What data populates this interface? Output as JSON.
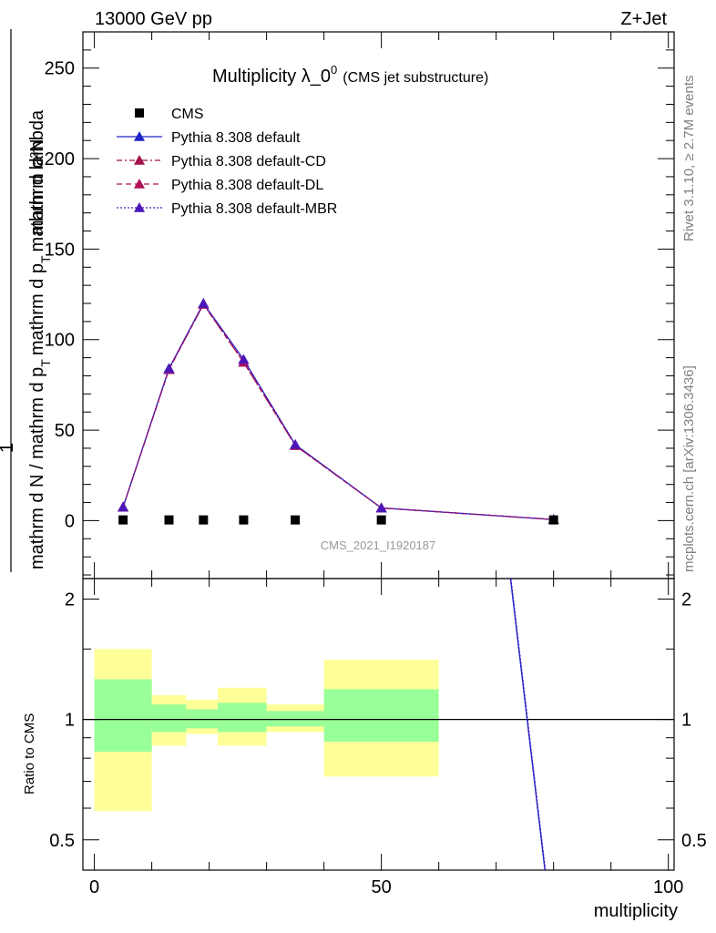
{
  "header": {
    "left": "13000 GeV pp",
    "right": "Z+Jet"
  },
  "side_labels": {
    "rivet": "Rivet 3.1.10, ≥ 2.7M events",
    "mcplots": "mcplots.cern.ch [arXiv:1306.3436]"
  },
  "chart_data": {
    "type": "line",
    "title_main": "Multiplicity λ_0",
    "title_sup": "0",
    "title_sub": "(CMS jet substructure)",
    "analysis_label": "CMS_2021_I1920187",
    "xlabel": "multiplicity",
    "ylabel_numerator": "mathrm d²N",
    "ylabel_denominator": "mathrm d N / mathrm d p",
    "ylabel_denominator_sub": "T",
    "ylabel_denominator_rest": "mathrm d p",
    "ylabel_denominator_sub2": "T",
    "ylabel_denominator_end": "mathrm d lambda",
    "ylabel_one": "1",
    "ratio_ylabel": "Ratio to CMS",
    "xlim": [
      -2,
      101
    ],
    "ylim": [
      -32,
      270
    ],
    "ratio_ylim": [
      0.42,
      2.25
    ],
    "x_ticks": [
      "0",
      "50",
      "100"
    ],
    "y_ticks": [
      "0",
      "50",
      "100",
      "150",
      "200",
      "250"
    ],
    "ratio_ticks": [
      "0.5",
      "1",
      "2"
    ],
    "legend": [
      {
        "label": "CMS",
        "color": "#000000",
        "style": "square"
      },
      {
        "label": "Pythia 8.308 default",
        "color": "#1f26c8",
        "style": "solid"
      },
      {
        "label": "Pythia 8.308 default-CD",
        "color": "#a0124a",
        "style": "dashdot"
      },
      {
        "label": "Pythia 8.308 default-DL",
        "color": "#b0125a",
        "style": "dashed"
      },
      {
        "label": "Pythia 8.308 default-MBR",
        "color": "#4d17b8",
        "style": "dotted"
      }
    ],
    "cms": {
      "x": [
        5,
        13,
        19,
        26,
        35,
        50,
        80
      ],
      "y": [
        0.4,
        0.4,
        0.4,
        0.4,
        0.4,
        0.4,
        0.4
      ]
    },
    "series": [
      {
        "name": "Pythia 8.308 default",
        "color": "#1f26c8",
        "x": [
          5,
          13,
          19,
          26,
          35,
          50,
          80
        ],
        "y": [
          7.5,
          84,
          120,
          89,
          42,
          7,
          0.6
        ]
      },
      {
        "name": "Pythia 8.308 default-CD",
        "color": "#a0124a",
        "x": [
          5,
          13,
          19,
          26,
          35,
          50,
          80
        ],
        "y": [
          7.5,
          83.5,
          119.5,
          87.5,
          41.5,
          7,
          0.6
        ]
      },
      {
        "name": "Pythia 8.308 default-DL",
        "color": "#b0125a",
        "x": [
          5,
          13,
          19,
          26,
          35,
          50,
          80
        ],
        "y": [
          7.5,
          83.5,
          119.5,
          87.5,
          41.5,
          7,
          0.6
        ]
      },
      {
        "name": "Pythia 8.308 default-MBR",
        "color": "#4d17b8",
        "x": [
          5,
          13,
          19,
          26,
          35,
          50,
          80
        ],
        "y": [
          7.5,
          84,
          120,
          89,
          42,
          7,
          0.6
        ]
      }
    ],
    "ratio_bands": [
      {
        "x0": 0,
        "x1": 10,
        "y_lo": 0.59,
        "y_hi": 1.5,
        "g_lo": 0.83,
        "g_hi": 1.26
      },
      {
        "x0": 10,
        "x1": 16,
        "y_lo": 0.86,
        "y_hi": 1.15,
        "g_lo": 0.93,
        "g_hi": 1.09
      },
      {
        "x0": 16,
        "x1": 21.5,
        "y_lo": 0.92,
        "y_hi": 1.12,
        "g_lo": 0.95,
        "g_hi": 1.06
      },
      {
        "x0": 21.5,
        "x1": 30,
        "y_lo": 0.86,
        "y_hi": 1.2,
        "g_lo": 0.93,
        "g_hi": 1.1
      },
      {
        "x0": 30,
        "x1": 40,
        "y_lo": 0.93,
        "y_hi": 1.09,
        "g_lo": 0.96,
        "g_hi": 1.05
      },
      {
        "x0": 40,
        "x1": 60,
        "y_lo": 0.72,
        "y_hi": 1.41,
        "g_lo": 0.88,
        "g_hi": 1.19
      }
    ],
    "ratio_line": {
      "x": [
        72.5,
        78.5
      ],
      "y": [
        2.3,
        0.42
      ]
    },
    "band_colors": {
      "outer": "#ffff99",
      "inner": "#99ff99"
    }
  }
}
